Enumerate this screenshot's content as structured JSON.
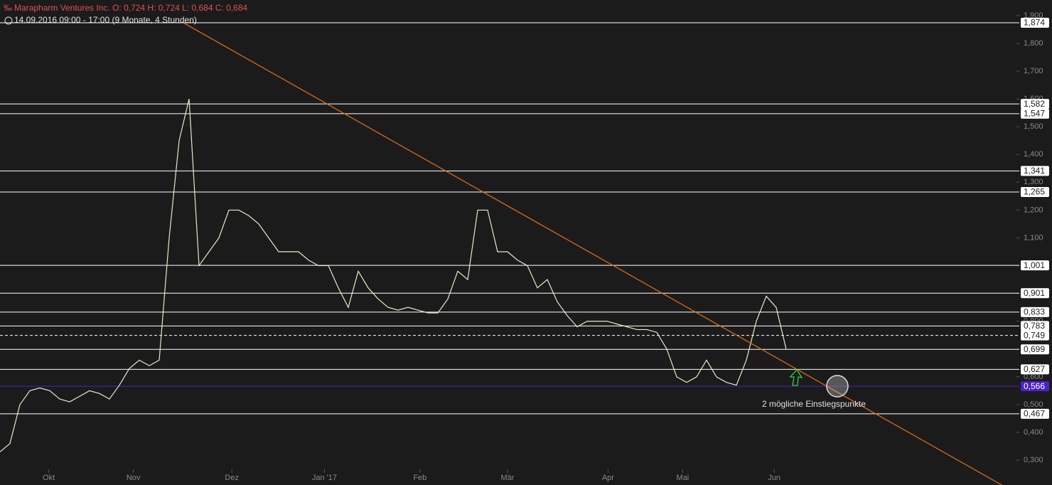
{
  "chart_data": {
    "type": "line",
    "title": "Marapharm Ventures Inc.  O: 0,724  H: 0,724  L: 0,684  C: 0,684",
    "subtitle": "14.09.2016 09:00 - 17:00  (9 Monate, 4 Stunden)",
    "annotation": "2 mögliche Einstiegspunkte",
    "grid": false,
    "xlim": [
      0,
      102
    ],
    "ylim": [
      0.267,
      1.956
    ],
    "xticks": [
      {
        "value": 4.9,
        "label": "Okt"
      },
      {
        "value": 13.4,
        "label": "Nov"
      },
      {
        "value": 23.3,
        "label": "Dez"
      },
      {
        "value": 32.6,
        "label": "Jan '17"
      },
      {
        "value": 42.2,
        "label": "Feb"
      },
      {
        "value": 51,
        "label": "Mär"
      },
      {
        "value": 61.1,
        "label": "Apr"
      },
      {
        "value": 68.6,
        "label": "Mai"
      },
      {
        "value": 77.8,
        "label": "Jun"
      }
    ],
    "yticks": [
      {
        "value": 1.9,
        "label": "1,900"
      },
      {
        "value": 1.8,
        "label": "1,800"
      },
      {
        "value": 1.7,
        "label": "1,700"
      },
      {
        "value": 1.6,
        "label": "1,600"
      },
      {
        "value": 1.5,
        "label": "1,500"
      },
      {
        "value": 1.4,
        "label": "1,400"
      },
      {
        "value": 1.3,
        "label": "1,300"
      },
      {
        "value": 1.2,
        "label": "1,200"
      },
      {
        "value": 1.1,
        "label": "1,100"
      },
      {
        "value": 1.0,
        "label": "1,000"
      },
      {
        "value": 0.9,
        "label": "0,900"
      },
      {
        "value": 0.8,
        "label": "0,800"
      },
      {
        "value": 0.7,
        "label": "0,700"
      },
      {
        "value": 0.6,
        "label": "0,600"
      },
      {
        "value": 0.5,
        "label": "0,500"
      },
      {
        "value": 0.4,
        "label": "0,400"
      },
      {
        "value": 0.3,
        "label": "0,300"
      }
    ],
    "series": [
      {
        "name": "Marapharm Ventures Inc.",
        "color": "#e8e8c8",
        "values": [
          0.33,
          0.36,
          0.5,
          0.55,
          0.56,
          0.55,
          0.52,
          0.51,
          0.53,
          0.55,
          0.54,
          0.52,
          0.57,
          0.63,
          0.66,
          0.64,
          0.66,
          1.1,
          1.45,
          1.6,
          1.0,
          1.05,
          1.1,
          1.2,
          1.2,
          1.18,
          1.15,
          1.1,
          1.05,
          1.05,
          1.05,
          1.02,
          1.0,
          1.0,
          0.92,
          0.85,
          0.98,
          0.92,
          0.88,
          0.85,
          0.84,
          0.85,
          0.84,
          0.83,
          0.83,
          0.88,
          0.98,
          0.95,
          1.2,
          1.2,
          1.05,
          1.05,
          1.02,
          1.0,
          0.92,
          0.95,
          0.87,
          0.82,
          0.78,
          0.8,
          0.8,
          0.8,
          0.79,
          0.78,
          0.77,
          0.77,
          0.76,
          0.7,
          0.6,
          0.58,
          0.6,
          0.66,
          0.6,
          0.58,
          0.57,
          0.66,
          0.8,
          0.89,
          0.85,
          0.7
        ]
      }
    ],
    "levels": [
      {
        "value": 1.874,
        "label": "1,874",
        "color": "#ffffff"
      },
      {
        "value": 1.582,
        "label": "1,582",
        "color": "#ffffff"
      },
      {
        "value": 1.547,
        "label": "1,547",
        "color": "#ffffff"
      },
      {
        "value": 1.341,
        "label": "1,341",
        "color": "#ffffff"
      },
      {
        "value": 1.265,
        "label": "1,265",
        "color": "#ffffff"
      },
      {
        "value": 1.001,
        "label": "1,001",
        "color": "#ffffff"
      },
      {
        "value": 0.901,
        "label": "0,901",
        "color": "#ffffff"
      },
      {
        "value": 0.833,
        "label": "0,833",
        "color": "#ffffff"
      },
      {
        "value": 0.783,
        "label": "0,783",
        "color": "#ffffff"
      },
      {
        "value": 0.749,
        "label": "0,749",
        "color": "#ffffff",
        "style": "dashed"
      },
      {
        "value": 0.699,
        "label": "0,699",
        "color": "#ffffff"
      },
      {
        "value": 0.627,
        "label": "0,627",
        "color": "#ffffff"
      },
      {
        "value": 0.566,
        "label": "0,566",
        "color": "#4a22c8"
      },
      {
        "value": 0.467,
        "label": "0,467",
        "color": "#ffffff"
      }
    ],
    "trendline": {
      "color": "#e0701a",
      "x": [
        18.43,
        100.7
      ],
      "values": [
        1.874,
        0.21
      ]
    }
  }
}
